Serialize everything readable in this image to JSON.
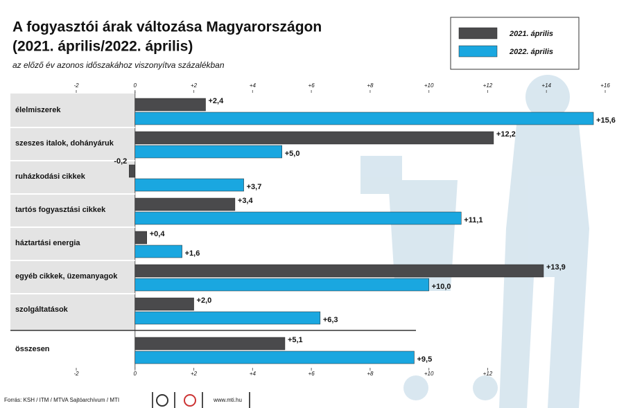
{
  "chart_data": {
    "type": "hbar",
    "title": [
      "A fogyasztói árak változása Magyarországon",
      "(2021. április/2022. április)"
    ],
    "subtitle": "az előző év azonos időszakához viszonyítva százalékban",
    "categories": [
      "élelmiszerek",
      "szeszes italok, dohányáruk",
      "ruházkodási cikkek",
      "tartós fogyasztási cikkek",
      "háztartási energia",
      "egyéb cikkek, üzemanyagok",
      "szolgáltatások",
      "összesen"
    ],
    "series": [
      {
        "name": "2021. április",
        "color": "#4a4a4c",
        "values": [
          2.4,
          12.2,
          -0.2,
          3.4,
          0.4,
          13.9,
          2.0,
          5.1
        ],
        "value_labels": [
          "+2,4",
          "+12,2",
          "-0,2",
          "+3,4",
          "+0,4",
          "+13,9",
          "+2,0",
          "+5,1"
        ]
      },
      {
        "name": "2022. április",
        "color": "#1aa7e0",
        "values": [
          15.6,
          5.0,
          3.7,
          11.1,
          1.6,
          10.0,
          6.3,
          9.5
        ],
        "value_labels": [
          "+15,6",
          "+5,0",
          "+3,7",
          "+11,1",
          "+1,6",
          "+10,0",
          "+6,3",
          "+9,5"
        ]
      }
    ],
    "xlim": [
      -2,
      16
    ],
    "xticks": [
      -2,
      0,
      {
        "value": 2,
        "label": "+2"
      },
      {
        "value": 4,
        "label": "+4"
      },
      {
        "value": 6,
        "label": "+6"
      },
      {
        "value": 8,
        "label": "+8"
      },
      {
        "value": 10,
        "label": "+10"
      },
      {
        "value": 12,
        "label": "+12"
      },
      {
        "value": 14,
        "label": "+14"
      },
      {
        "value": 16,
        "label": "+16"
      }
    ],
    "xticks_bottom": [
      -2,
      0,
      {
        "value": 2,
        "label": "+2"
      },
      {
        "value": 4,
        "label": "+4"
      },
      {
        "value": 6,
        "label": "+6"
      },
      {
        "value": 8,
        "label": "+8"
      },
      {
        "value": 10,
        "label": "+10"
      },
      {
        "value": 12,
        "label": "+12"
      }
    ],
    "source": "Forrás: KSH / ITM / MTVA Sajtóarchívum / MTI",
    "website": "www.mti.hu"
  }
}
